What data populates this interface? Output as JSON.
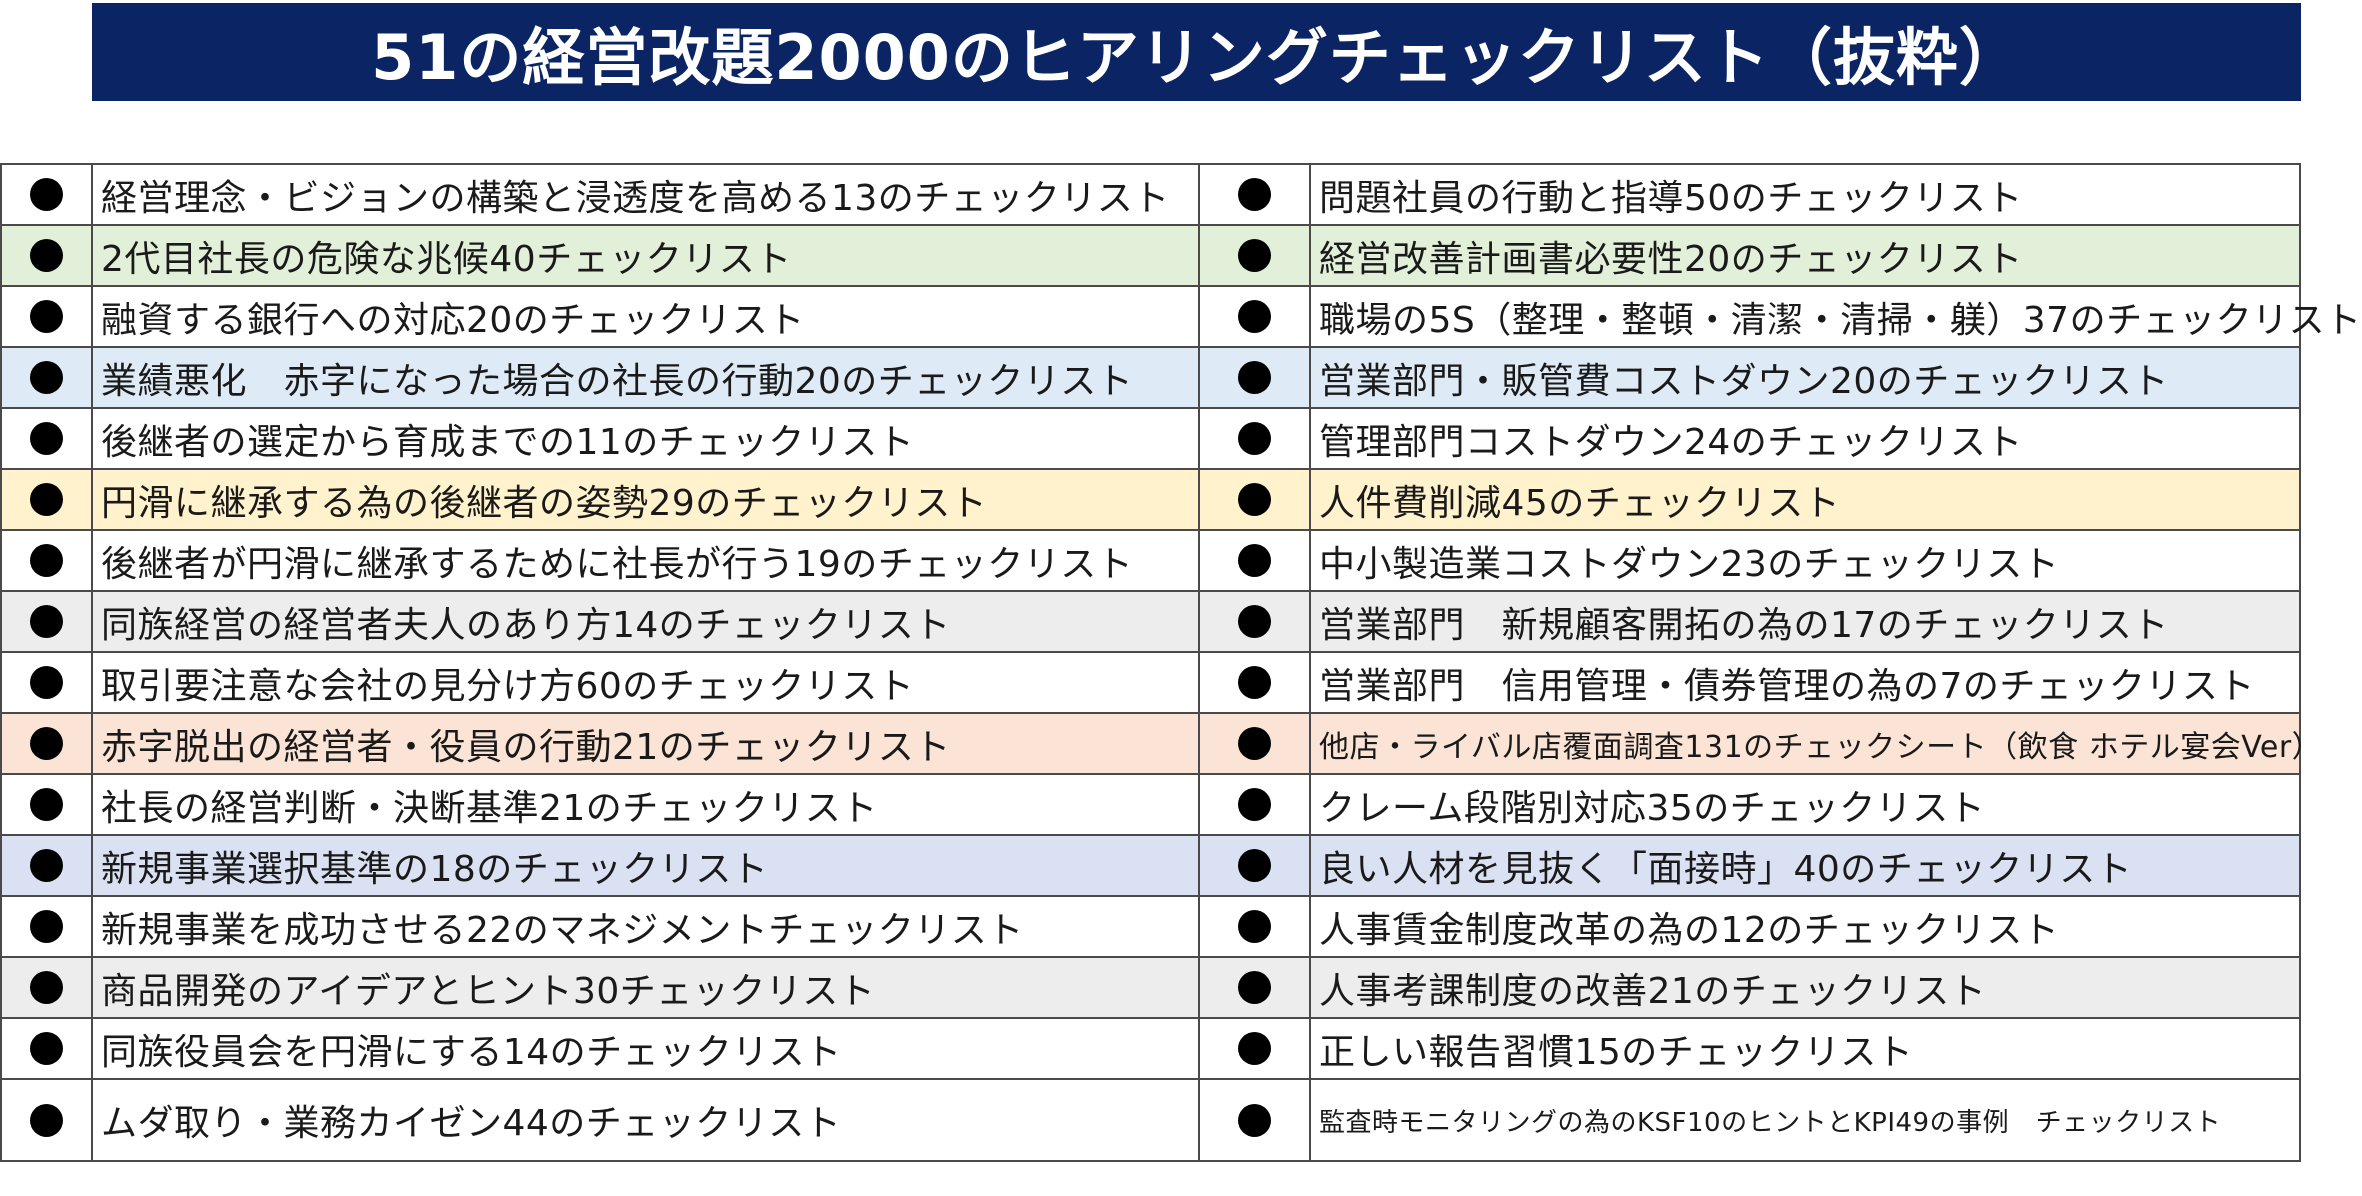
{
  "title": "51の経営改題2000のヒアリングチェックリスト（抜粋）",
  "rows": [
    {
      "bg": "#ffffff",
      "left": "経営理念・ビジョンの構築と浸透度を高める13のチェックリスト",
      "right": "問題社員の行動と指導50のチェックリスト"
    },
    {
      "bg": "#e2efd9",
      "left": "2代目社長の危険な兆候40チェックリスト",
      "right": "経営改善計画書必要性20のチェックリスト"
    },
    {
      "bg": "#ffffff",
      "left": "融資する銀行への対応20のチェックリスト",
      "right": "職場の5S（整理・整頓・清潔・清掃・躾）37のチェックリスト"
    },
    {
      "bg": "#deebf7",
      "left": "業績悪化　赤字になった場合の社長の行動20のチェックリスト",
      "right": "営業部門・販管費コストダウン20のチェックリスト"
    },
    {
      "bg": "#ffffff",
      "left": "後継者の選定から育成までの11のチェックリスト",
      "right": "管理部門コストダウン24のチェックリスト"
    },
    {
      "bg": "#fff2cc",
      "left": "円滑に継承する為の後継者の姿勢29のチェックリスト",
      "right": "人件費削減45のチェックリスト"
    },
    {
      "bg": "#ffffff",
      "left": "後継者が円滑に継承するために社長が行う19のチェックリスト",
      "right": "中小製造業コストダウン23のチェックリスト"
    },
    {
      "bg": "#ededed",
      "left": "同族経営の経営者夫人のあり方14のチェックリスト",
      "right": "営業部門　新規顧客開拓の為の17のチェックリスト"
    },
    {
      "bg": "#ffffff",
      "left": "取引要注意な会社の見分け方60のチェックリスト",
      "right": "営業部門　信用管理・債券管理の為の7のチェックリスト"
    },
    {
      "bg": "#fbe4d5",
      "left": "赤字脱出の経営者・役員の行動21のチェックリスト",
      "right": "他店・ライバル店覆面調査131のチェックシート（飲食 ホテル宴会Ver）",
      "right_size": "small"
    },
    {
      "bg": "#ffffff",
      "left": "社長の経営判断・決断基準21のチェックリスト",
      "right": "クレーム段階別対応35のチェックリスト"
    },
    {
      "bg": "#d9e1f2",
      "left": "新規事業選択基準の18のチェックリスト",
      "right": "良い人材を見抜く「面接時」40のチェックリスト"
    },
    {
      "bg": "#ffffff",
      "left": "新規事業を成功させる22のマネジメントチェックリスト",
      "right": "人事賃金制度改革の為の12のチェックリスト"
    },
    {
      "bg": "#ededed",
      "left": "商品開発のアイデアとヒント30チェックリスト",
      "right": "人事考課制度の改善21のチェックリスト"
    },
    {
      "bg": "#ffffff",
      "left": "同族役員会を円滑にする14のチェックリスト",
      "right": "正しい報告習慣15のチェックリスト"
    },
    {
      "bg": "#ffffff",
      "left": "ムダ取り・業務カイゼン44のチェックリスト",
      "right": "監査時モニタリングの為のKSF10のヒントとKPI49の事例　チェックリスト",
      "right_size": "tiny"
    }
  ]
}
